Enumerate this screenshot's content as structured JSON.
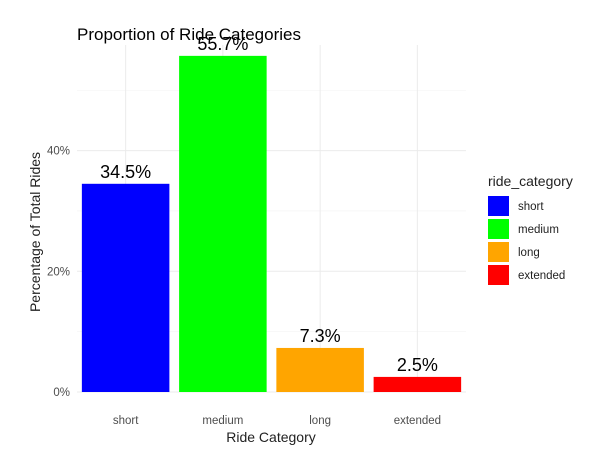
{
  "chart_data": {
    "type": "bar",
    "title": "Proportion of Ride Categories",
    "xlabel": "Ride Category",
    "ylabel": "Percentage of Total Rides",
    "categories": [
      "short",
      "medium",
      "long",
      "extended"
    ],
    "values": [
      34.5,
      55.7,
      7.3,
      2.5
    ],
    "data_labels": [
      "34.5%",
      "55.7%",
      "7.3%",
      "2.5%"
    ],
    "colors": [
      "#0000ff",
      "#00ff00",
      "#ffa500",
      "#ff0000"
    ],
    "ylim": [
      0,
      57.5
    ],
    "yticks": [
      0,
      20,
      40
    ],
    "ytick_labels": [
      "0%",
      "20%",
      "40%"
    ],
    "grid": true,
    "legend": {
      "title": "ride_category",
      "placement": "right",
      "entries": [
        "short",
        "medium",
        "long",
        "extended"
      ]
    }
  }
}
